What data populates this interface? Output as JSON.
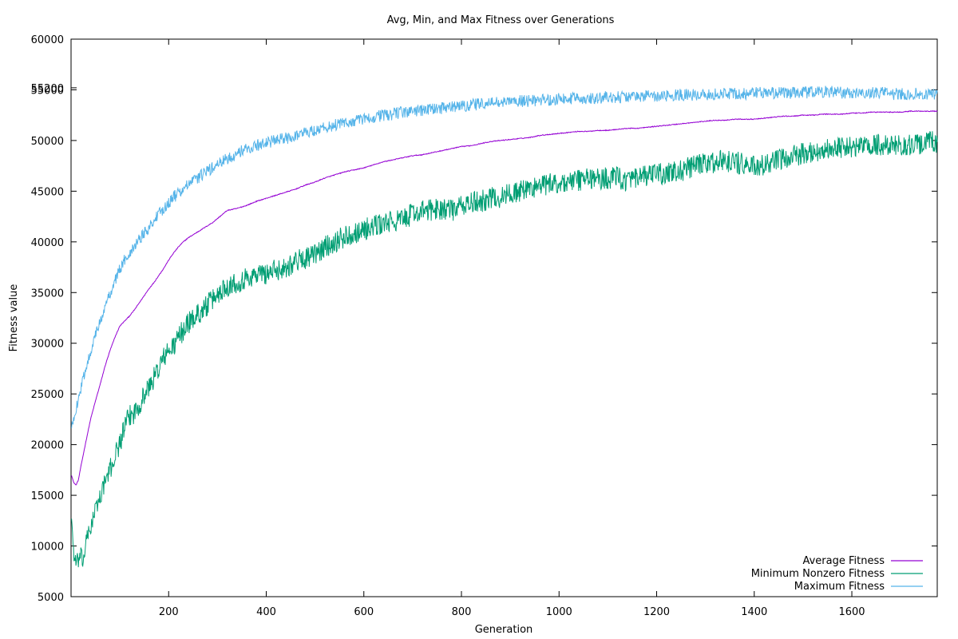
{
  "chart_data": {
    "type": "line",
    "title": "Avg, Min, and Max Fitness over Generations",
    "xlabel": "Generation",
    "ylabel": "Fitness value",
    "xlim": [
      0,
      1775
    ],
    "ylim": [
      5000,
      60000
    ],
    "x_ticks": [
      200,
      400,
      600,
      800,
      1000,
      1200,
      1400,
      1600
    ],
    "y_ticks": [
      5000,
      10000,
      15000,
      20000,
      25000,
      30000,
      35000,
      40000,
      45000,
      50000,
      55000,
      60000
    ],
    "extra_y_tick": "55200",
    "grid": false,
    "legend_position": "bottom-right",
    "series": [
      {
        "name": "Average Fitness",
        "color": "#9400d3",
        "x": [
          1,
          5,
          10,
          15,
          20,
          25,
          30,
          40,
          50,
          60,
          70,
          80,
          90,
          100,
          110,
          120,
          130,
          140,
          150,
          160,
          170,
          180,
          190,
          200,
          210,
          220,
          230,
          240,
          250,
          260,
          270,
          280,
          290,
          300,
          320,
          340,
          360,
          380,
          400,
          420,
          440,
          460,
          480,
          500,
          520,
          540,
          560,
          580,
          600,
          620,
          640,
          660,
          680,
          700,
          720,
          740,
          760,
          780,
          800,
          820,
          840,
          860,
          880,
          900,
          920,
          940,
          960,
          980,
          1000,
          1020,
          1040,
          1060,
          1080,
          1100,
          1120,
          1140,
          1160,
          1180,
          1200,
          1220,
          1240,
          1260,
          1280,
          1300,
          1320,
          1340,
          1360,
          1380,
          1400,
          1420,
          1440,
          1460,
          1480,
          1500,
          1520,
          1540,
          1560,
          1580,
          1600,
          1620,
          1640,
          1660,
          1680,
          1700,
          1720,
          1740,
          1760,
          1775
        ],
        "values": [
          17000,
          16300,
          16000,
          16500,
          17800,
          19000,
          20200,
          22500,
          24300,
          26000,
          27800,
          29300,
          30600,
          31700,
          32200,
          32700,
          33300,
          34000,
          34700,
          35400,
          36000,
          36700,
          37400,
          38200,
          38900,
          39500,
          40000,
          40400,
          40700,
          41000,
          41300,
          41600,
          41900,
          42300,
          43100,
          43300,
          43600,
          44000,
          44300,
          44600,
          44900,
          45200,
          45600,
          45900,
          46300,
          46600,
          46900,
          47100,
          47300,
          47600,
          47900,
          48100,
          48300,
          48500,
          48600,
          48800,
          49000,
          49200,
          49400,
          49500,
          49700,
          49900,
          50000,
          50100,
          50200,
          50300,
          50500,
          50600,
          50700,
          50800,
          50900,
          50900,
          51000,
          51000,
          51100,
          51200,
          51200,
          51300,
          51400,
          51500,
          51600,
          51700,
          51800,
          51900,
          52000,
          52000,
          52100,
          52100,
          52100,
          52200,
          52300,
          52400,
          52400,
          52500,
          52500,
          52600,
          52600,
          52600,
          52700,
          52700,
          52800,
          52800,
          52800,
          52800,
          52900,
          52900,
          52900,
          52900
        ]
      },
      {
        "name": "Minimum Nonzero Fitness",
        "color": "#009e73",
        "x": [
          1,
          5,
          10,
          15,
          20,
          25,
          30,
          40,
          50,
          60,
          70,
          80,
          90,
          100,
          110,
          120,
          130,
          140,
          150,
          160,
          170,
          180,
          190,
          200,
          210,
          220,
          230,
          240,
          250,
          260,
          270,
          280,
          290,
          300,
          320,
          340,
          360,
          380,
          400,
          420,
          440,
          460,
          480,
          500,
          520,
          540,
          560,
          580,
          600,
          620,
          640,
          660,
          680,
          700,
          720,
          740,
          760,
          780,
          800,
          820,
          840,
          860,
          880,
          900,
          920,
          940,
          960,
          980,
          1000,
          1020,
          1040,
          1060,
          1080,
          1100,
          1120,
          1140,
          1160,
          1180,
          1200,
          1220,
          1240,
          1260,
          1280,
          1300,
          1320,
          1340,
          1360,
          1380,
          1400,
          1420,
          1440,
          1460,
          1480,
          1500,
          1520,
          1540,
          1560,
          1580,
          1600,
          1620,
          1640,
          1660,
          1680,
          1700,
          1720,
          1740,
          1760,
          1775
        ],
        "values": [
          13000,
          9500,
          8200,
          8600,
          9000,
          8400,
          10300,
          11800,
          13600,
          14900,
          16400,
          17500,
          18900,
          20200,
          21700,
          22800,
          23200,
          24000,
          24900,
          25700,
          26600,
          27600,
          28600,
          29200,
          29700,
          30600,
          31300,
          32000,
          32400,
          32900,
          33300,
          33800,
          34300,
          34800,
          35700,
          36000,
          36400,
          36800,
          36900,
          37200,
          37500,
          38100,
          38400,
          38700,
          39500,
          40000,
          40500,
          40900,
          41200,
          41500,
          41800,
          42000,
          42200,
          42800,
          43000,
          43200,
          43300,
          43100,
          43500,
          43800,
          44000,
          44300,
          44400,
          44800,
          45000,
          45300,
          45500,
          45700,
          45800,
          45900,
          46100,
          46300,
          46200,
          46300,
          46400,
          46000,
          46200,
          46500,
          46700,
          46700,
          46900,
          47200,
          47500,
          47700,
          47900,
          48000,
          47900,
          47600,
          47400,
          47500,
          47800,
          48200,
          48500,
          48700,
          48900,
          49100,
          49200,
          49300,
          49300,
          49500,
          49400,
          49600,
          49400,
          49500,
          49600,
          49700,
          49800,
          49900
        ]
      },
      {
        "name": "Maximum Fitness",
        "color": "#56b4e9",
        "x": [
          1,
          5,
          10,
          15,
          20,
          25,
          30,
          40,
          50,
          60,
          70,
          80,
          90,
          100,
          110,
          120,
          130,
          140,
          150,
          160,
          170,
          180,
          190,
          200,
          210,
          220,
          230,
          240,
          250,
          260,
          270,
          280,
          290,
          300,
          320,
          340,
          360,
          380,
          400,
          420,
          440,
          460,
          480,
          500,
          520,
          540,
          560,
          580,
          600,
          620,
          640,
          660,
          680,
          700,
          720,
          740,
          760,
          780,
          800,
          820,
          840,
          860,
          880,
          900,
          920,
          940,
          960,
          980,
          1000,
          1020,
          1040,
          1060,
          1080,
          1100,
          1120,
          1140,
          1160,
          1180,
          1200,
          1220,
          1240,
          1260,
          1280,
          1300,
          1320,
          1340,
          1360,
          1380,
          1400,
          1420,
          1440,
          1460,
          1480,
          1500,
          1520,
          1540,
          1560,
          1580,
          1600,
          1620,
          1640,
          1660,
          1680,
          1700,
          1720,
          1740,
          1760,
          1775
        ],
        "values": [
          21500,
          22600,
          23500,
          24500,
          25500,
          26500,
          27500,
          29200,
          30800,
          32200,
          33600,
          35000,
          36200,
          37300,
          38200,
          39000,
          39700,
          40300,
          40900,
          41500,
          42100,
          42700,
          43300,
          43900,
          44400,
          44800,
          45200,
          45600,
          46000,
          46300,
          46700,
          47000,
          47300,
          47600,
          48200,
          48700,
          49200,
          49500,
          49800,
          50000,
          50200,
          50500,
          50800,
          51000,
          51300,
          51500,
          51700,
          51900,
          52100,
          52300,
          52500,
          52600,
          52800,
          52900,
          53000,
          53100,
          53200,
          53300,
          53400,
          53500,
          53600,
          53700,
          53800,
          53800,
          53900,
          53900,
          54000,
          54000,
          54100,
          54100,
          54200,
          54200,
          54200,
          54300,
          54300,
          54300,
          54300,
          54400,
          54400,
          54400,
          54500,
          54500,
          54500,
          54500,
          54600,
          54600,
          54600,
          54600,
          54700,
          54700,
          54700,
          54700,
          54700,
          54700,
          54800,
          54800,
          54800,
          54700,
          54700,
          54700,
          54700,
          54700,
          54600,
          54600,
          54600,
          54600,
          54500,
          54500
        ]
      }
    ]
  }
}
